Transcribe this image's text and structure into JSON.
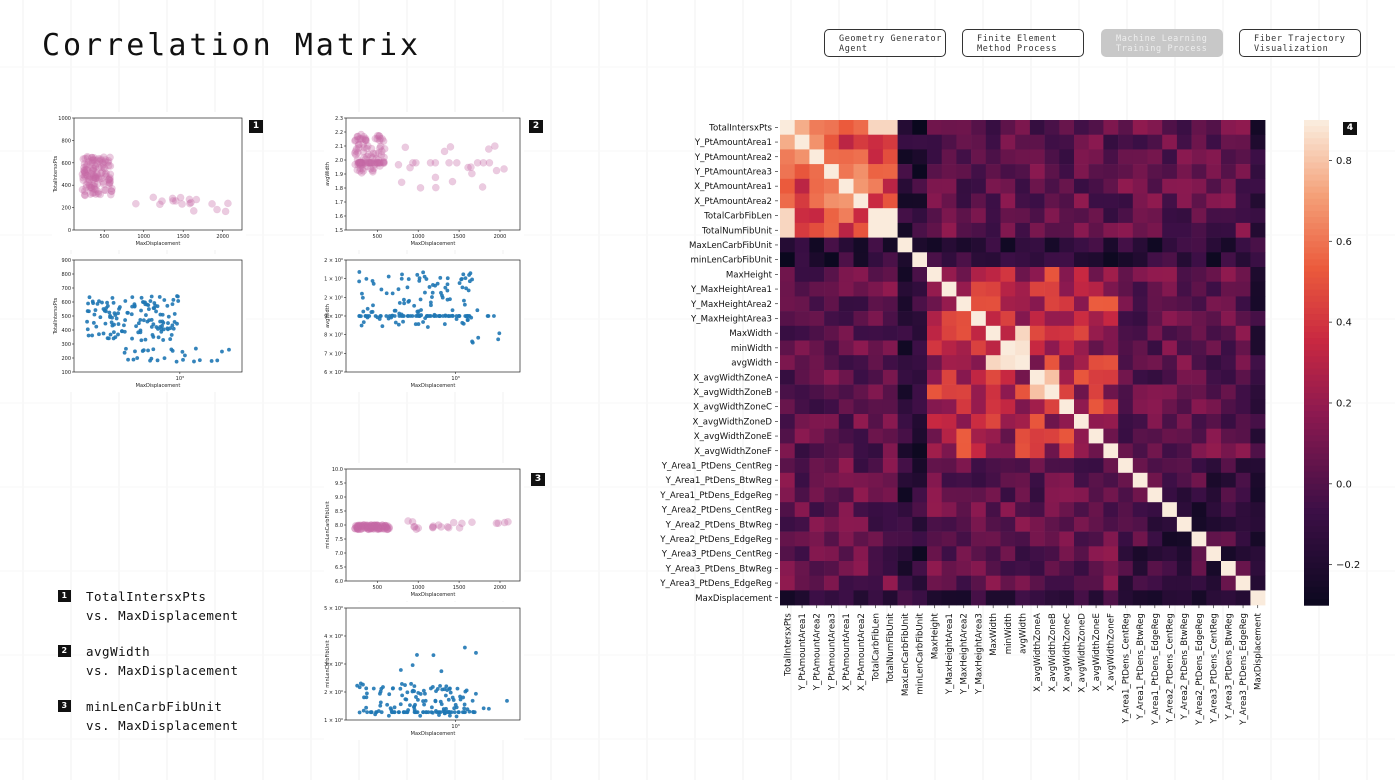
{
  "page": {
    "title": "Correlation Matrix"
  },
  "nav": [
    {
      "label": "Geometry Generator\nAgent",
      "active": false
    },
    {
      "label": "Finite Element\nMethod Process",
      "active": false
    },
    {
      "label": "Machine Learning\nTraining Process",
      "active": true
    },
    {
      "label": "Fiber Trajectory\nVisualization",
      "active": false
    }
  ],
  "badges": [
    "1",
    "2",
    "3",
    "4"
  ],
  "legend": [
    {
      "badge": "1",
      "line1": "TotalIntersxPts",
      "line2": "vs. MaxDisplacement"
    },
    {
      "badge": "2",
      "line1": "avgWidth",
      "line2": "vs. MaxDisplacement"
    },
    {
      "badge": "3",
      "line1": "minLenCarbFibUnit",
      "line2": "vs. MaxDisplacement"
    }
  ],
  "colors": {
    "point_pink": "#c56aa6",
    "point_blue": "#1f77b4"
  },
  "scatter_plots": [
    {
      "ylabel": "TotalIntersxPts",
      "xlabel": "MaxDisplacement",
      "yticks": [
        "1000",
        "800",
        "600",
        "400",
        "200",
        "0"
      ],
      "xticks": [
        "500",
        "1000",
        "1500",
        "2000"
      ]
    },
    {
      "ylabel": "TotalIntersxPts",
      "xlabel": "MaxDisplacement",
      "yticks": [
        "900",
        "800",
        "700",
        "600",
        "500",
        "400",
        "300",
        "200",
        "100"
      ],
      "xticks": [
        "10³"
      ]
    },
    {
      "ylabel": "avgWidth",
      "xlabel": "MaxDisplacement",
      "yticks": [
        "2.3",
        "2.2",
        "2.1",
        "2.0",
        "1.9",
        "1.8",
        "1.7",
        "1.6",
        "1.5"
      ],
      "xticks": [
        "500",
        "1000",
        "1500",
        "2000"
      ]
    },
    {
      "ylabel": "avgWidth",
      "xlabel": "MaxDisplacement",
      "yticks": [
        "2.2 × 10⁰",
        "2.1 × 10⁰",
        "2 × 10⁰",
        "1.9 × 10⁰",
        "1.8 × 10⁰",
        "1.7 × 10⁰",
        "1.6 × 10⁰"
      ],
      "xticks": [
        "10³"
      ]
    },
    {
      "ylabel": "minLenCarbFibUnit",
      "xlabel": "MaxDisplacement",
      "yticks": [
        "10.0",
        "9.5",
        "9.0",
        "8.5",
        "8.0",
        "7.5",
        "7.0",
        "6.5",
        "6.0"
      ],
      "xticks": [
        "500",
        "1000",
        "1500",
        "2000"
      ]
    },
    {
      "ylabel": "minLenCarbFibUnit",
      "xlabel": "MaxDisplacement",
      "yticks": [
        "8.5 × 10⁰",
        "8.4 × 10⁰",
        "8.3 × 10⁰",
        "8.2 × 10⁰",
        "8.1 × 10⁰"
      ],
      "xticks": [
        "10³"
      ]
    }
  ],
  "chart_data": {
    "type": "heatmap",
    "labels": [
      "TotalIntersxPts",
      "Y_PtAmountArea1",
      "Y_PtAmountArea2",
      "Y_PtAmountArea3",
      "X_PtAmountArea1",
      "X_PtAmountArea2",
      "TotalCarbFibLen",
      "TotalNumFibUnit",
      "MaxLenCarbFibUnit",
      "minLenCarbFibUnit",
      "MaxHeight",
      "Y_MaxHeightArea1",
      "Y_MaxHeightArea2",
      "Y_MaxHeightArea3",
      "MaxWidth",
      "minWidth",
      "avgWidth",
      "X_avgWidthZoneA",
      "X_avgWidthZoneB",
      "X_avgWidthZoneC",
      "X_avgWidthZoneD",
      "X_avgWidthZoneE",
      "X_avgWidthZoneF",
      "Y_Area1_PtDens_CentReg",
      "Y_Area1_PtDens_BtwReg",
      "Y_Area1_PtDens_EdgeReg",
      "Y_Area2_PtDens_CentReg",
      "Y_Area2_PtDens_BtwReg",
      "Y_Area2_PtDens_EdgeReg",
      "Y_Area3_PtDens_CentReg",
      "Y_Area3_PtDens_BtwReg",
      "Y_Area3_PtDens_EdgeReg",
      "MaxDisplacement"
    ],
    "colorbar_ticks": [
      0.8,
      0.6,
      0.4,
      0.2,
      0.0,
      -0.2
    ],
    "colorbar_tick_labels": [
      "0.8",
      "0.6",
      "0.4",
      "0.2",
      "0.0",
      "−0.2"
    ],
    "vmin": -0.3,
    "vmax": 0.9,
    "notable_correlations": [
      {
        "a": "TotalIntersxPts",
        "b": "Y_PtAmountArea1",
        "r": 0.75
      },
      {
        "a": "TotalIntersxPts",
        "b": "TotalCarbFibLen",
        "r": 0.85
      },
      {
        "a": "TotalIntersxPts",
        "b": "TotalNumFibUnit",
        "r": 0.85
      },
      {
        "a": "TotalCarbFibLen",
        "b": "TotalNumFibUnit",
        "r": 0.9
      },
      {
        "a": "MaxWidth",
        "b": "avgWidth",
        "r": 0.85
      },
      {
        "a": "minWidth",
        "b": "avgWidth",
        "r": 0.88
      },
      {
        "a": "X_avgWidthZoneA",
        "b": "X_avgWidthZoneB",
        "r": 0.8
      },
      {
        "a": "TotalIntersxPts",
        "b": "MaxDisplacement",
        "r": -0.25
      },
      {
        "a": "minLenCarbFibUnit",
        "b": "TotalIntersxPts",
        "r": -0.3
      }
    ]
  }
}
